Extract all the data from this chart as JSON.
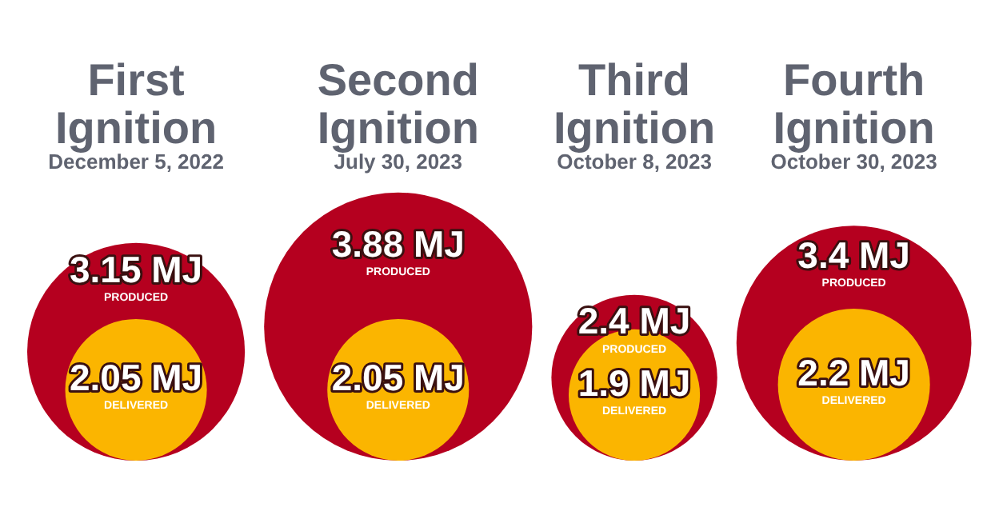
{
  "chart_data": {
    "type": "other",
    "categories": [
      "First Ignition",
      "Second Ignition",
      "Third Ignition",
      "Fourth Ignition"
    ],
    "series": [
      {
        "name": "PRODUCED",
        "color": "#b5001f",
        "values": [
          3.15,
          3.88,
          2.4,
          3.4
        ],
        "value_labels": [
          "3.15 MJ",
          "3.88 MJ",
          "2.4 MJ",
          "3.4 MJ"
        ]
      },
      {
        "name": "DELIVERED",
        "color": "#fbb500",
        "values": [
          2.05,
          2.05,
          1.9,
          2.2
        ],
        "value_labels": [
          "2.05 MJ",
          "2.05 MJ",
          "1.9 MJ",
          "2.2 MJ"
        ]
      }
    ],
    "annotations": [
      {
        "text": "December 5, 2022",
        "x": "First Ignition"
      },
      {
        "text": "July 30, 2023",
        "x": "Second Ignition"
      },
      {
        "text": "October 8, 2023",
        "x": "Third Ignition"
      },
      {
        "text": "October 30, 2023",
        "x": "Fourth Ignition"
      }
    ],
    "legend": false
  }
}
